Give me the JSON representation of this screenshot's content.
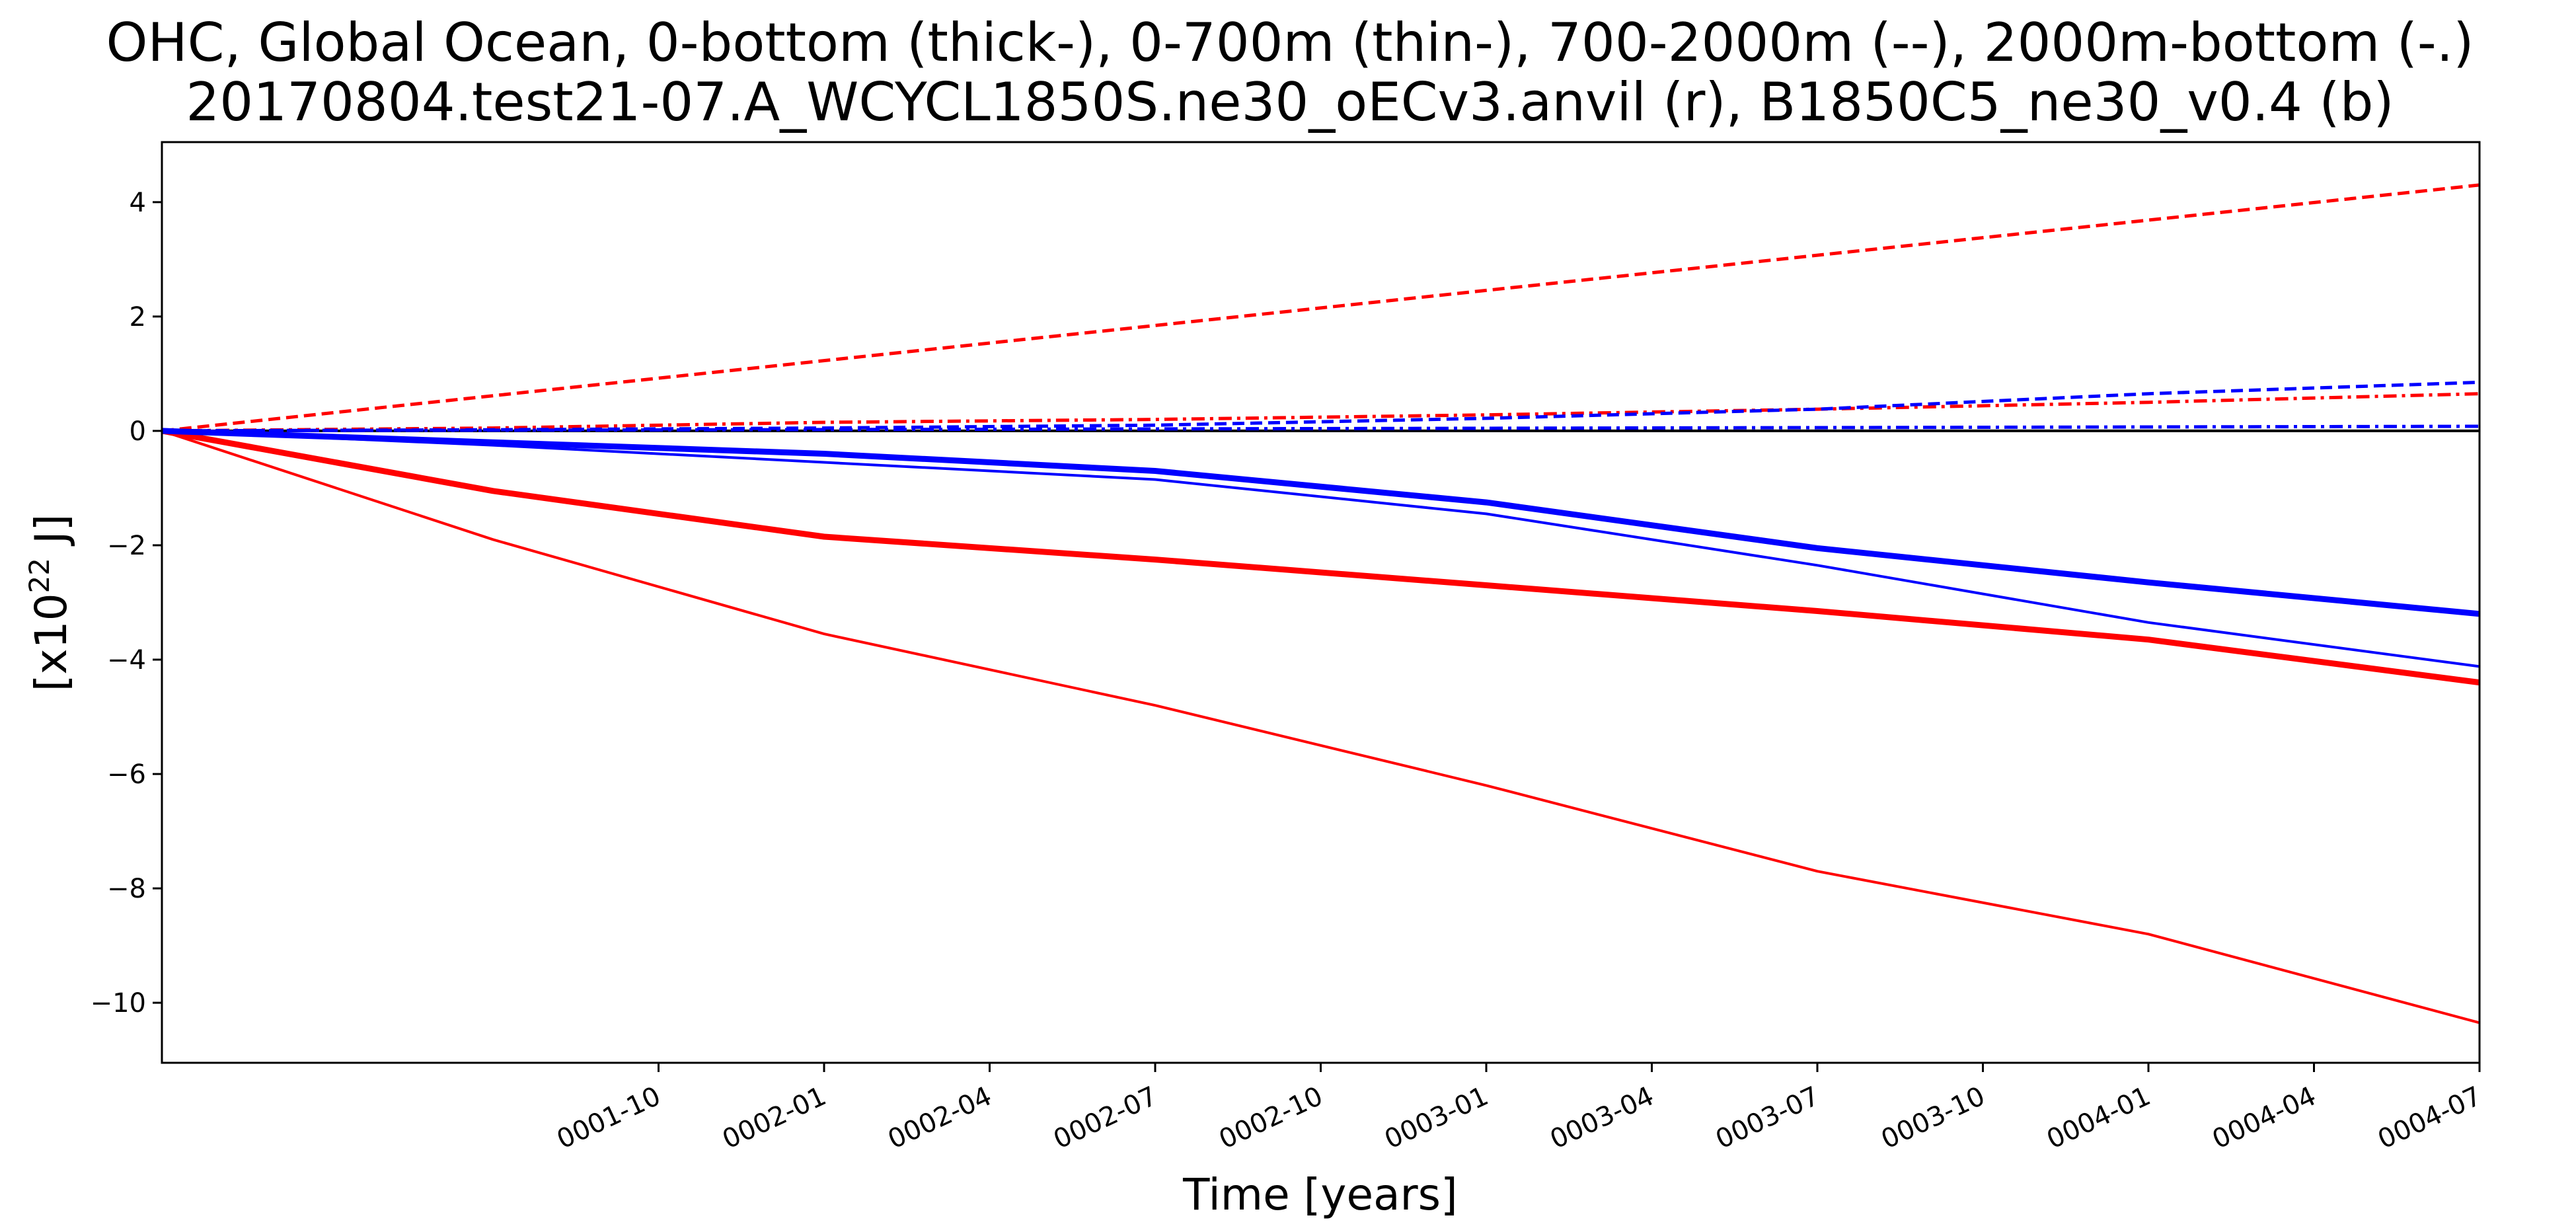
{
  "chart_data": {
    "type": "line",
    "title": [
      "OHC, Global Ocean, 0-bottom (thick-), 0-700m (thin-), 700-2000m (--), 2000m-bottom (-.)",
      "20170804.test21-07.A_WCYCL1850S.ne30_oECv3.anvil (r), B1850C5_ne30_v0.4 (b)"
    ],
    "xlabel": "Time [years]",
    "ylabel": {
      "prefix": "[x10",
      "superscript": "22",
      "suffix": " J]"
    },
    "x_axis": {
      "type": "time",
      "range": [
        "0001-01",
        "0004-07"
      ],
      "ticks": [
        "0001-10",
        "0002-01",
        "0002-04",
        "0002-07",
        "0002-10",
        "0003-01",
        "0003-04",
        "0003-07",
        "0003-10",
        "0004-01",
        "0004-04",
        "0004-07"
      ],
      "tick_rotation_deg": 25
    },
    "y_axis": {
      "range": [
        -11.05,
        5.05
      ],
      "ticks": [
        -10,
        -8,
        -6,
        -4,
        -2,
        0,
        2,
        4
      ],
      "tick_labels": [
        "−10",
        "−8",
        "−6",
        "−4",
        "−2",
        "0",
        "2",
        "4"
      ]
    },
    "grid": false,
    "legend": "none",
    "colors": {
      "r": "#ff0000",
      "b": "#0000ff",
      "zero_line": "#000000"
    },
    "zero_line": {
      "y": 0
    },
    "series": [
      {
        "color": "r",
        "style": "solid",
        "weight": "thick",
        "x": [
          "0001-01",
          "0001-07",
          "0002-01",
          "0002-07",
          "0003-01",
          "0003-07",
          "0004-01",
          "0004-07"
        ],
        "y": [
          0,
          -1.05,
          -1.85,
          -2.25,
          -2.7,
          -3.15,
          -3.65,
          -4.4
        ]
      },
      {
        "color": "r",
        "style": "solid",
        "weight": "thin",
        "x": [
          "0001-01",
          "0001-07",
          "0002-01",
          "0002-07",
          "0003-01",
          "0003-07",
          "0004-01",
          "0004-07"
        ],
        "y": [
          0,
          -1.9,
          -3.55,
          -4.8,
          -6.2,
          -7.7,
          -8.8,
          -10.35
        ]
      },
      {
        "color": "r",
        "style": "dashed",
        "weight": "medium",
        "x": [
          "0001-01",
          "0004-07"
        ],
        "y": [
          0,
          4.3
        ]
      },
      {
        "color": "r",
        "style": "dashdot",
        "weight": "medium",
        "x": [
          "0001-01",
          "0001-07",
          "0002-01",
          "0002-07",
          "0003-01",
          "0003-07",
          "0004-01",
          "0004-07"
        ],
        "y": [
          0,
          0.05,
          0.15,
          0.2,
          0.28,
          0.38,
          0.5,
          0.65
        ]
      },
      {
        "color": "b",
        "style": "solid",
        "weight": "thick",
        "x": [
          "0001-01",
          "0001-07",
          "0002-01",
          "0002-07",
          "0003-01",
          "0003-07",
          "0004-01",
          "0004-07"
        ],
        "y": [
          0,
          -0.2,
          -0.4,
          -0.7,
          -1.25,
          -2.05,
          -2.65,
          -3.2
        ]
      },
      {
        "color": "b",
        "style": "solid",
        "weight": "thin",
        "x": [
          "0001-01",
          "0001-07",
          "0002-01",
          "0002-07",
          "0003-01",
          "0003-07",
          "0004-01",
          "0004-07"
        ],
        "y": [
          0,
          -0.25,
          -0.55,
          -0.85,
          -1.45,
          -2.35,
          -3.35,
          -4.12
        ]
      },
      {
        "color": "b",
        "style": "dashed",
        "weight": "medium",
        "x": [
          "0001-01",
          "0001-07",
          "0002-01",
          "0002-07",
          "0003-01",
          "0003-07",
          "0004-01",
          "0004-07"
        ],
        "y": [
          0,
          0.02,
          0.05,
          0.1,
          0.22,
          0.38,
          0.65,
          0.85
        ]
      },
      {
        "color": "b",
        "style": "dashdot",
        "weight": "medium",
        "x": [
          "0001-01",
          "0004-07"
        ],
        "y": [
          0,
          0.08
        ]
      }
    ]
  }
}
